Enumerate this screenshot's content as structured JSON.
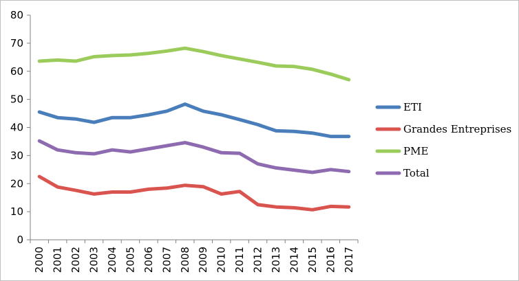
{
  "chart_data": {
    "type": "line",
    "title": "",
    "xlabel": "",
    "ylabel": "",
    "x": [
      "2000",
      "2001",
      "2002",
      "2003",
      "2004",
      "2005",
      "2006",
      "2007",
      "2008",
      "2009",
      "2010",
      "2011",
      "2012",
      "2013",
      "2014",
      "2015",
      "2016",
      "2017"
    ],
    "ylim": [
      0,
      80
    ],
    "yticks": [
      "0",
      "10",
      "20",
      "30",
      "40",
      "50",
      "60",
      "70",
      "80"
    ],
    "grid": false,
    "legend_position": "right",
    "series": [
      {
        "name": "ETI",
        "color": "#4a7ebb",
        "values": [
          45.5,
          43.5,
          43,
          41.8,
          43.5,
          43.5,
          44.5,
          45.8,
          48.3,
          45.8,
          44.5,
          42.8,
          41,
          38.8,
          38.6,
          38,
          36.8,
          36.8
        ]
      },
      {
        "name": "Grandes Entreprises",
        "color": "#d9534f",
        "values": [
          22.5,
          18.8,
          17.6,
          16.3,
          17,
          17,
          18,
          18.4,
          19.4,
          18.9,
          16.3,
          17.2,
          12.5,
          11.7,
          11.4,
          10.7,
          11.9,
          11.7
        ]
      },
      {
        "name": "PME",
        "color": "#9bcc5b",
        "values": [
          63.6,
          64,
          63.6,
          65.2,
          65.6,
          65.8,
          66.4,
          67.2,
          68.2,
          67,
          65.6,
          64.4,
          63.2,
          61.9,
          61.7,
          60.7,
          59,
          57
        ]
      },
      {
        "name": "Total",
        "color": "#8e6bb0",
        "values": [
          35.2,
          32,
          31,
          30.6,
          32,
          31.3,
          32.4,
          33.5,
          34.6,
          33,
          31,
          30.8,
          27,
          25.6,
          24.8,
          24,
          25,
          24.3
        ]
      }
    ]
  }
}
